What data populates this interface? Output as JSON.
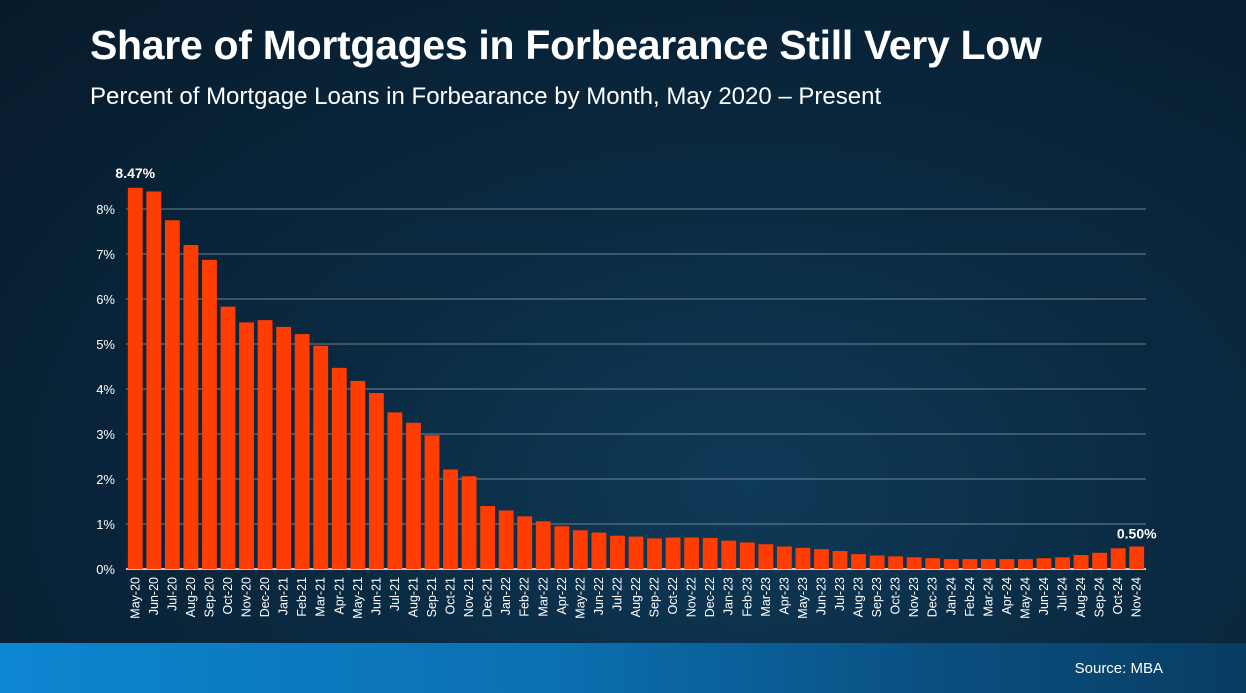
{
  "title": "Share of Mortgages in Forbearance Still Very Low",
  "subtitle": "Percent of Mortgage Loans in Forbearance by Month, May 2020 – Present",
  "source": "Source: MBA",
  "colors": {
    "bar": "#ff3d00",
    "gridline": "#8a99a6",
    "text": "#ffffff"
  },
  "chart_data": {
    "type": "bar",
    "ylim": [
      0,
      8.5
    ],
    "yticks": [
      0,
      1,
      2,
      3,
      4,
      5,
      6,
      7,
      8
    ],
    "ytick_labels": [
      "0%",
      "1%",
      "2%",
      "3%",
      "4%",
      "5%",
      "6%",
      "7%",
      "8%"
    ],
    "grid": true,
    "categories": [
      "May-20",
      "Jun-20",
      "Jul-20",
      "Aug-20",
      "Sep-20",
      "Oct-20",
      "Nov-20",
      "Dec-20",
      "Jan-21",
      "Feb-21",
      "Mar-21",
      "Apr-21",
      "May-21",
      "Jun-21",
      "Jul-21",
      "Aug-21",
      "Sep-21",
      "Oct-21",
      "Nov-21",
      "Dec-21",
      "Jan-22",
      "Feb-22",
      "Mar-22",
      "Apr-22",
      "May-22",
      "Jun-22",
      "Jul-22",
      "Aug-22",
      "Sep-22",
      "Oct-22",
      "Nov-22",
      "Dec-22",
      "Jan-23",
      "Feb-23",
      "Mar-23",
      "Apr-23",
      "May-23",
      "Jun-23",
      "Jul-23",
      "Aug-23",
      "Sep-23",
      "Oct-23",
      "Nov-23",
      "Dec-23",
      "Jan-24",
      "Feb-24",
      "Mar-24",
      "Apr-24",
      "May-24",
      "Jun-24",
      "Jul-24",
      "Aug-24",
      "Sep-24",
      "Oct-24",
      "Nov-24"
    ],
    "values": [
      8.47,
      8.39,
      7.75,
      7.2,
      6.87,
      5.83,
      5.48,
      5.53,
      5.38,
      5.22,
      4.96,
      4.47,
      4.18,
      3.91,
      3.48,
      3.25,
      2.97,
      2.21,
      2.06,
      1.4,
      1.3,
      1.17,
      1.06,
      0.95,
      0.86,
      0.81,
      0.74,
      0.72,
      0.68,
      0.7,
      0.7,
      0.69,
      0.63,
      0.59,
      0.55,
      0.5,
      0.47,
      0.44,
      0.4,
      0.33,
      0.3,
      0.28,
      0.26,
      0.24,
      0.22,
      0.22,
      0.22,
      0.22,
      0.22,
      0.24,
      0.26,
      0.31,
      0.36,
      0.46,
      0.5
    ],
    "data_labels": [
      {
        "index": 0,
        "text": "8.47%"
      },
      {
        "index": 54,
        "text": "0.50%"
      }
    ]
  }
}
